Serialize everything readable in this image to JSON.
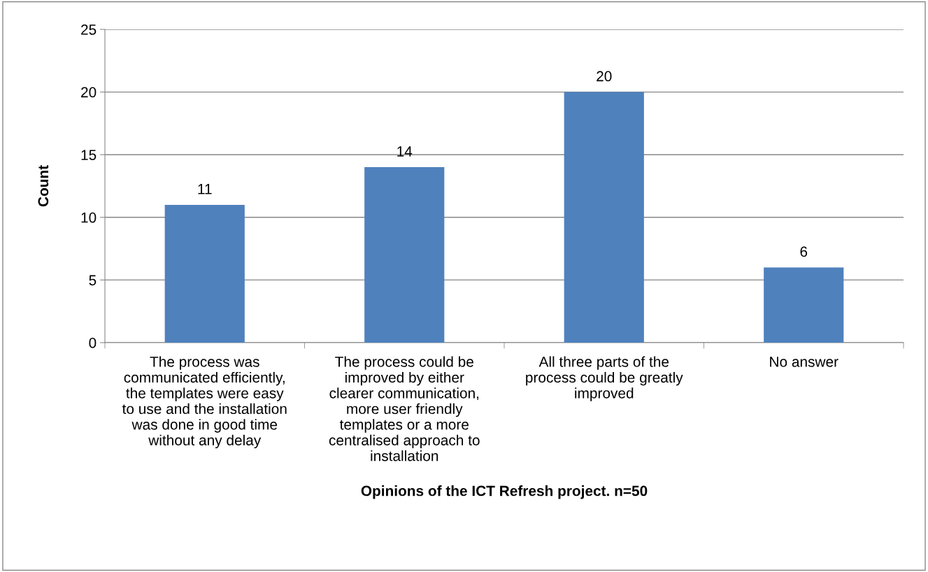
{
  "chart_data": {
    "type": "bar",
    "categories": [
      "The process was\ncommunicated efficiently,\nthe templates were easy\nto use and the installation\nwas done in good time\nwithout any delay",
      "The process could be\nimproved by either\nclearer communication,\nmore user friendly\ntemplates or a more\ncentralised approach to\ninstallation",
      "All three parts of the\nprocess could be greatly\nimproved",
      "No answer"
    ],
    "values": [
      11,
      14,
      20,
      6
    ],
    "color": "#4f81bd",
    "xlabel": "Opinions of the ICT Refresh project. n=50",
    "ylabel": "Count",
    "ylim": [
      0,
      25
    ],
    "yticks": [
      0,
      5,
      10,
      15,
      20,
      25
    ],
    "grid": "y",
    "data_labels": true,
    "legend": false
  }
}
